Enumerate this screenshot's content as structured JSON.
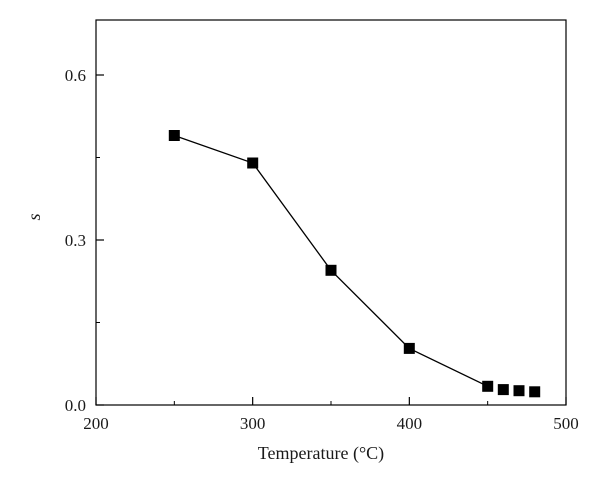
{
  "chart_data": {
    "type": "line",
    "title": "",
    "xlabel": "Temperature (°C)",
    "ylabel": "s",
    "xlim": [
      200,
      500
    ],
    "ylim": [
      0.0,
      0.7
    ],
    "x_ticks": [
      200,
      300,
      400,
      500
    ],
    "x_tick_labels": [
      "200",
      "300",
      "400",
      "500"
    ],
    "y_ticks": [
      0.0,
      0.3,
      0.6
    ],
    "y_tick_labels": [
      "0.0",
      "0.3",
      "0.6"
    ],
    "grid": false,
    "legend": "none",
    "marker": "square",
    "line_color": "#000000",
    "marker_color": "#000000",
    "series": [
      {
        "x": [
          250,
          300,
          350,
          400,
          450,
          460,
          470,
          480
        ],
        "y": [
          0.49,
          0.44,
          0.245,
          0.103,
          0.034,
          0.028,
          0.026,
          0.024
        ],
        "connected_count": 5
      }
    ]
  }
}
